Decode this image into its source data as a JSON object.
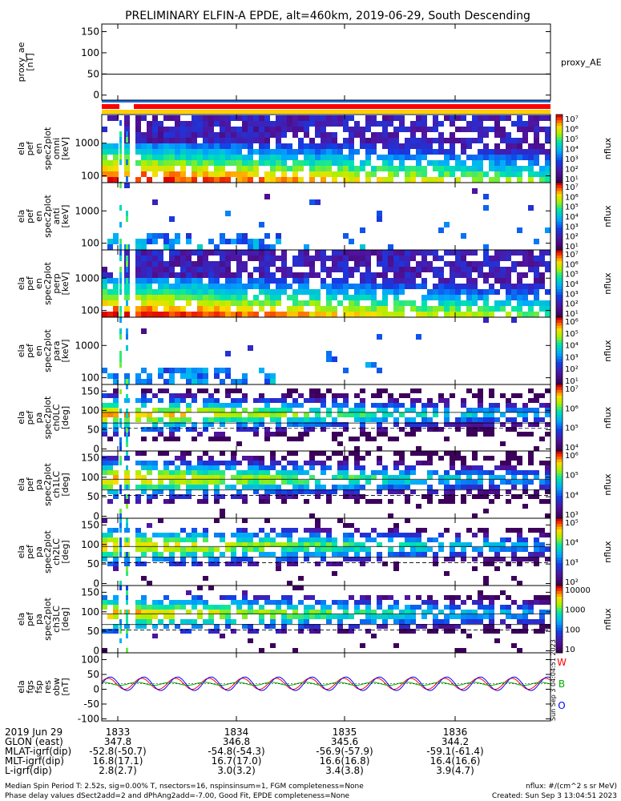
{
  "title": "PRELIMINARY ELFIN-A EPDE, alt=460km, 2019-06-29, South Descending",
  "colors": {
    "red_bar": "#ff0000",
    "blue_bar": "#1e6fe0",
    "yellow_bar": "#ffd000"
  },
  "panels": [
    {
      "key": "proxy_ae",
      "ylabel_lines": [
        "proxy_ae",
        "[nT]"
      ],
      "yticks": [
        "150",
        "100",
        "50",
        "0"
      ],
      "right_label": "proxy_AE",
      "bar_unit": "",
      "bar_ticks": []
    },
    {
      "key": "spec1",
      "ylabel_lines": [
        "ela",
        "pef",
        "en",
        "spec2plot",
        "omni",
        "[keV]"
      ],
      "yticks": [
        "1000",
        "100"
      ],
      "bar_unit": "nflux",
      "bar_ticks": [
        "10⁷",
        "10⁶",
        "10⁵",
        "10⁴",
        "10³",
        "10²",
        "10¹"
      ]
    },
    {
      "key": "spec2",
      "ylabel_lines": [
        "ela",
        "pef",
        "en",
        "spec2plot",
        "anti",
        "[keV]"
      ],
      "yticks": [
        "1000",
        "100"
      ],
      "bar_unit": "nflux",
      "bar_ticks": [
        "10⁷",
        "10⁶",
        "10⁵",
        "10⁴",
        "10³",
        "10²",
        "10¹"
      ]
    },
    {
      "key": "spec3",
      "ylabel_lines": [
        "ela",
        "pef",
        "en",
        "spec2plot",
        "perp",
        "[keV]"
      ],
      "yticks": [
        "1000",
        "100"
      ],
      "bar_unit": "nflux",
      "bar_ticks": [
        "10⁷",
        "10⁶",
        "10⁵",
        "10⁴",
        "10³",
        "10²",
        "10¹"
      ]
    },
    {
      "key": "spec4",
      "ylabel_lines": [
        "ela",
        "pef",
        "en",
        "spec2plot",
        "para",
        "[keV]"
      ],
      "yticks": [
        "1000",
        "100"
      ],
      "bar_unit": "nflux",
      "bar_ticks": [
        "10⁶",
        "10⁵",
        "10⁴",
        "10³",
        "10²",
        "10¹"
      ]
    },
    {
      "key": "pa0",
      "ylabel_lines": [
        "ela",
        "pef",
        "pa",
        "spec2plot",
        "ch0LC",
        "[deg]"
      ],
      "yticks": [
        "150",
        "100",
        "50",
        "0"
      ],
      "bar_unit": "nflux",
      "bar_ticks": [
        "10⁷",
        "10⁶",
        "10⁵",
        "10⁴"
      ]
    },
    {
      "key": "pa1",
      "ylabel_lines": [
        "ela",
        "pef",
        "pa",
        "spec2plot",
        "ch1LC",
        "[deg]"
      ],
      "yticks": [
        "150",
        "100",
        "50",
        "0"
      ],
      "bar_unit": "nflux",
      "bar_ticks": [
        "10⁶",
        "10⁵",
        "10⁴",
        "10³"
      ]
    },
    {
      "key": "pa2",
      "ylabel_lines": [
        "ela",
        "pef",
        "pa",
        "spec2plot",
        "ch2LC",
        "[deg]"
      ],
      "yticks": [
        "150",
        "100",
        "50",
        "0"
      ],
      "bar_unit": "nflux",
      "bar_ticks": [
        "10⁵",
        "10⁴",
        "10³",
        "10²"
      ]
    },
    {
      "key": "pa3",
      "ylabel_lines": [
        "ela",
        "pef",
        "pa",
        "spec2plot",
        "ch3LC",
        "[deg]"
      ],
      "yticks": [
        "150",
        "100",
        "50",
        "0"
      ],
      "bar_unit": "nflux",
      "bar_ticks": [
        "10000",
        "1000",
        "100",
        "10"
      ]
    },
    {
      "key": "fgm",
      "ylabel_lines": [
        "ela",
        "fgs",
        "fsp",
        "res",
        "obw",
        "[nT]"
      ],
      "yticks": [
        "100",
        "50",
        "0",
        "-50",
        "-100"
      ],
      "bar_unit": "",
      "bar_ticks": [],
      "legend": [
        {
          "label": "W",
          "color": "#ff0000"
        },
        {
          "label": "B",
          "color": "#00b000"
        },
        {
          "label": "O",
          "color": "#0000ff"
        }
      ]
    }
  ],
  "side_stamp": "Sun Sep  3 04:04:51 2023",
  "axis_rows": {
    "labels": [
      "2019 Jun 29",
      "GLON (east)",
      "MLAT-igrf(dip)",
      "MLT-igrf(dip)",
      "L-igrf(dip)"
    ],
    "columns": [
      [
        "1833",
        "347.8",
        "-52.8(-50.7)",
        "16.8(17.1)",
        "2.8(2.7)"
      ],
      [
        "1834",
        "346.8",
        "-54.8(-54.3)",
        "16.7(17.0)",
        "3.0(3.2)"
      ],
      [
        "1835",
        "345.6",
        "-56.9(-57.9)",
        "16.6(16.8)",
        "3.4(3.8)"
      ],
      [
        "1836",
        "344.2",
        "-59.1(-61.4)",
        "16.4(16.6)",
        "3.9(4.7)"
      ]
    ]
  },
  "footer": {
    "left1": "Median Spin Period T: 2.52s, sig=0.00% T, nsectors=16, nspinsinsum=1, FGM completeness=None",
    "left2": "Phase delay values dSect2add=2 and dPhAng2add=-7.00, Good Fit, EPDE completeness=None",
    "right1": "nflux: #/(cm^2 s sr MeV)",
    "right2": "Created: Sun Sep  3 13:04:51 2023"
  },
  "chart_data": {
    "type": "heatmap",
    "title": "PRELIMINARY ELFIN-A EPDE, alt=460km, 2019-06-29, South Descending",
    "x_ticks": [
      "1833",
      "1834",
      "1835",
      "1836"
    ],
    "proxy_ae": {
      "ylim": [
        -10,
        160
      ],
      "value": 48
    },
    "energy_ylim_keV": [
      60,
      6000
    ],
    "pitch_ylim_deg": [
      0,
      180
    ],
    "fgm_ylim_nT": [
      -120,
      100
    ],
    "fgm_series": [
      "W",
      "B",
      "O"
    ],
    "fgm_amplitude_nT": {
      "W": 18,
      "B": 5,
      "O": 22
    }
  }
}
